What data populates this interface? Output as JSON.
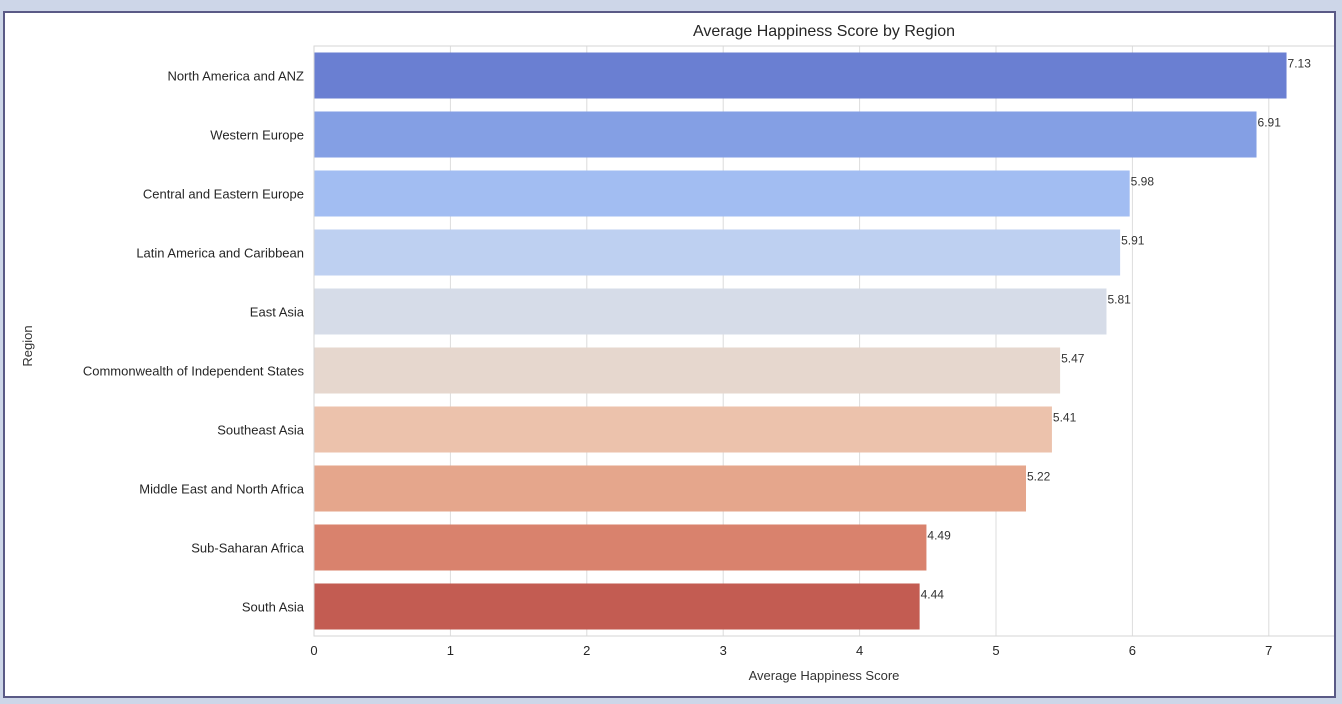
{
  "chart_data": {
    "type": "bar",
    "orientation": "horizontal",
    "title": "Average Happiness Score by Region",
    "xlabel": "Average Happiness Score",
    "ylabel": "Region",
    "categories": [
      "North America and ANZ",
      "Western Europe",
      "Central and Eastern Europe",
      "Latin America and Caribbean",
      "East Asia",
      "Commonwealth of Independent States",
      "Southeast Asia",
      "Middle East and North Africa",
      "Sub-Saharan Africa",
      "South Asia"
    ],
    "values": [
      7.13,
      6.91,
      5.98,
      5.91,
      5.81,
      5.47,
      5.41,
      5.22,
      4.49,
      4.44
    ],
    "data_labels": [
      "7.13",
      "6.91",
      "5.98",
      "5.91",
      "5.81",
      "5.47",
      "5.41",
      "5.22",
      "4.49",
      "4.44"
    ],
    "colors": [
      "#6a7fd2",
      "#849fe4",
      "#a2bdf2",
      "#bed0f1",
      "#d6dce8",
      "#e6d7ce",
      "#ecc2ac",
      "#e5a68c",
      "#d9826d",
      "#c35c52"
    ],
    "xticks": [
      "0",
      "1",
      "2",
      "3",
      "4",
      "5",
      "6",
      "7"
    ],
    "xlim": [
      0,
      7.5
    ],
    "grid": true,
    "legend": false
  }
}
